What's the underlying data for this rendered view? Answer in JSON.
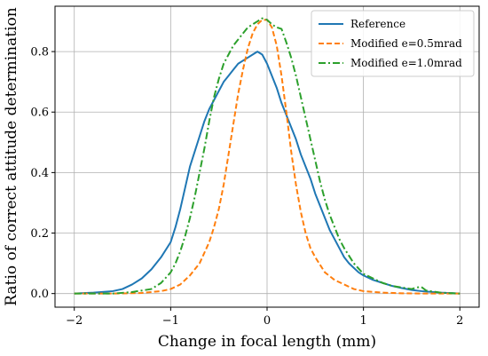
{
  "chart_data": {
    "type": "line",
    "title": "",
    "xlabel": "Change in focal length (mm)",
    "ylabel": "Ratio of correct attitude determination",
    "xlim": [
      -2.2,
      2.2
    ],
    "ylim": [
      -0.045,
      0.95
    ],
    "xticks": [
      -2,
      -1,
      0,
      1,
      2
    ],
    "xtick_labels": [
      "−2",
      "−1",
      "0",
      "1",
      "2"
    ],
    "yticks": [
      0.0,
      0.2,
      0.4,
      0.6,
      0.8
    ],
    "ytick_labels": [
      "0.0",
      "0.2",
      "0.4",
      "0.6",
      "0.8"
    ],
    "grid": true,
    "legend_position": "top-right",
    "series": [
      {
        "name": "Reference",
        "color": "#1f77b4",
        "style": "solid",
        "x": [
          -2.0,
          -1.8,
          -1.6,
          -1.5,
          -1.4,
          -1.3,
          -1.2,
          -1.1,
          -1.0,
          -0.95,
          -0.9,
          -0.85,
          -0.8,
          -0.75,
          -0.7,
          -0.65,
          -0.6,
          -0.55,
          -0.5,
          -0.45,
          -0.4,
          -0.35,
          -0.3,
          -0.25,
          -0.2,
          -0.15,
          -0.1,
          -0.05,
          0.0,
          0.05,
          0.1,
          0.15,
          0.2,
          0.25,
          0.3,
          0.35,
          0.4,
          0.45,
          0.5,
          0.55,
          0.6,
          0.65,
          0.7,
          0.75,
          0.8,
          0.85,
          0.9,
          0.95,
          1.0,
          1.1,
          1.2,
          1.3,
          1.4,
          1.5,
          1.6,
          1.8,
          2.0
        ],
        "y": [
          0.0,
          0.003,
          0.008,
          0.015,
          0.03,
          0.05,
          0.08,
          0.12,
          0.17,
          0.22,
          0.28,
          0.35,
          0.42,
          0.47,
          0.52,
          0.57,
          0.61,
          0.64,
          0.67,
          0.7,
          0.72,
          0.74,
          0.76,
          0.77,
          0.78,
          0.79,
          0.8,
          0.79,
          0.76,
          0.72,
          0.68,
          0.63,
          0.59,
          0.55,
          0.51,
          0.46,
          0.42,
          0.38,
          0.33,
          0.29,
          0.25,
          0.21,
          0.18,
          0.15,
          0.12,
          0.1,
          0.085,
          0.07,
          0.06,
          0.045,
          0.035,
          0.025,
          0.018,
          0.012,
          0.008,
          0.003,
          0.0
        ]
      },
      {
        "name": "Modified e=0.5mrad",
        "color": "#ff7f0e",
        "style": "dashed",
        "x": [
          -2.0,
          -1.6,
          -1.3,
          -1.1,
          -1.0,
          -0.9,
          -0.8,
          -0.7,
          -0.6,
          -0.55,
          -0.5,
          -0.45,
          -0.4,
          -0.35,
          -0.3,
          -0.25,
          -0.2,
          -0.15,
          -0.1,
          -0.05,
          0.0,
          0.05,
          0.1,
          0.15,
          0.2,
          0.25,
          0.3,
          0.35,
          0.4,
          0.45,
          0.5,
          0.6,
          0.7,
          0.8,
          0.9,
          1.0,
          1.2,
          1.4,
          1.6,
          2.0
        ],
        "y": [
          0.0,
          0.0,
          0.002,
          0.008,
          0.015,
          0.03,
          0.06,
          0.1,
          0.17,
          0.22,
          0.28,
          0.36,
          0.46,
          0.56,
          0.66,
          0.74,
          0.81,
          0.86,
          0.89,
          0.905,
          0.905,
          0.88,
          0.82,
          0.72,
          0.6,
          0.47,
          0.36,
          0.27,
          0.2,
          0.15,
          0.12,
          0.07,
          0.045,
          0.03,
          0.015,
          0.008,
          0.003,
          0.001,
          0.0,
          0.0
        ]
      },
      {
        "name": "Modified e=1.0mrad",
        "color": "#2ca02c",
        "style": "dashdot",
        "x": [
          -2.0,
          -1.6,
          -1.4,
          -1.2,
          -1.1,
          -1.0,
          -0.95,
          -0.9,
          -0.85,
          -0.8,
          -0.75,
          -0.7,
          -0.65,
          -0.6,
          -0.55,
          -0.5,
          -0.45,
          -0.4,
          -0.35,
          -0.3,
          -0.25,
          -0.2,
          -0.15,
          -0.1,
          -0.05,
          0.0,
          0.05,
          0.1,
          0.15,
          0.2,
          0.25,
          0.3,
          0.35,
          0.4,
          0.45,
          0.5,
          0.55,
          0.6,
          0.65,
          0.7,
          0.75,
          0.8,
          0.9,
          1.0,
          1.1,
          1.2,
          1.3,
          1.4,
          1.5,
          1.55,
          1.6,
          1.65,
          1.8,
          2.0
        ],
        "y": [
          0.0,
          0.0,
          0.005,
          0.015,
          0.035,
          0.07,
          0.1,
          0.14,
          0.19,
          0.25,
          0.32,
          0.4,
          0.48,
          0.57,
          0.65,
          0.71,
          0.76,
          0.79,
          0.82,
          0.84,
          0.86,
          0.88,
          0.89,
          0.9,
          0.91,
          0.905,
          0.89,
          0.88,
          0.875,
          0.83,
          0.78,
          0.72,
          0.65,
          0.58,
          0.51,
          0.44,
          0.37,
          0.31,
          0.26,
          0.22,
          0.18,
          0.15,
          0.1,
          0.065,
          0.05,
          0.035,
          0.025,
          0.02,
          0.015,
          0.02,
          0.022,
          0.01,
          0.003,
          0.0
        ]
      }
    ]
  }
}
